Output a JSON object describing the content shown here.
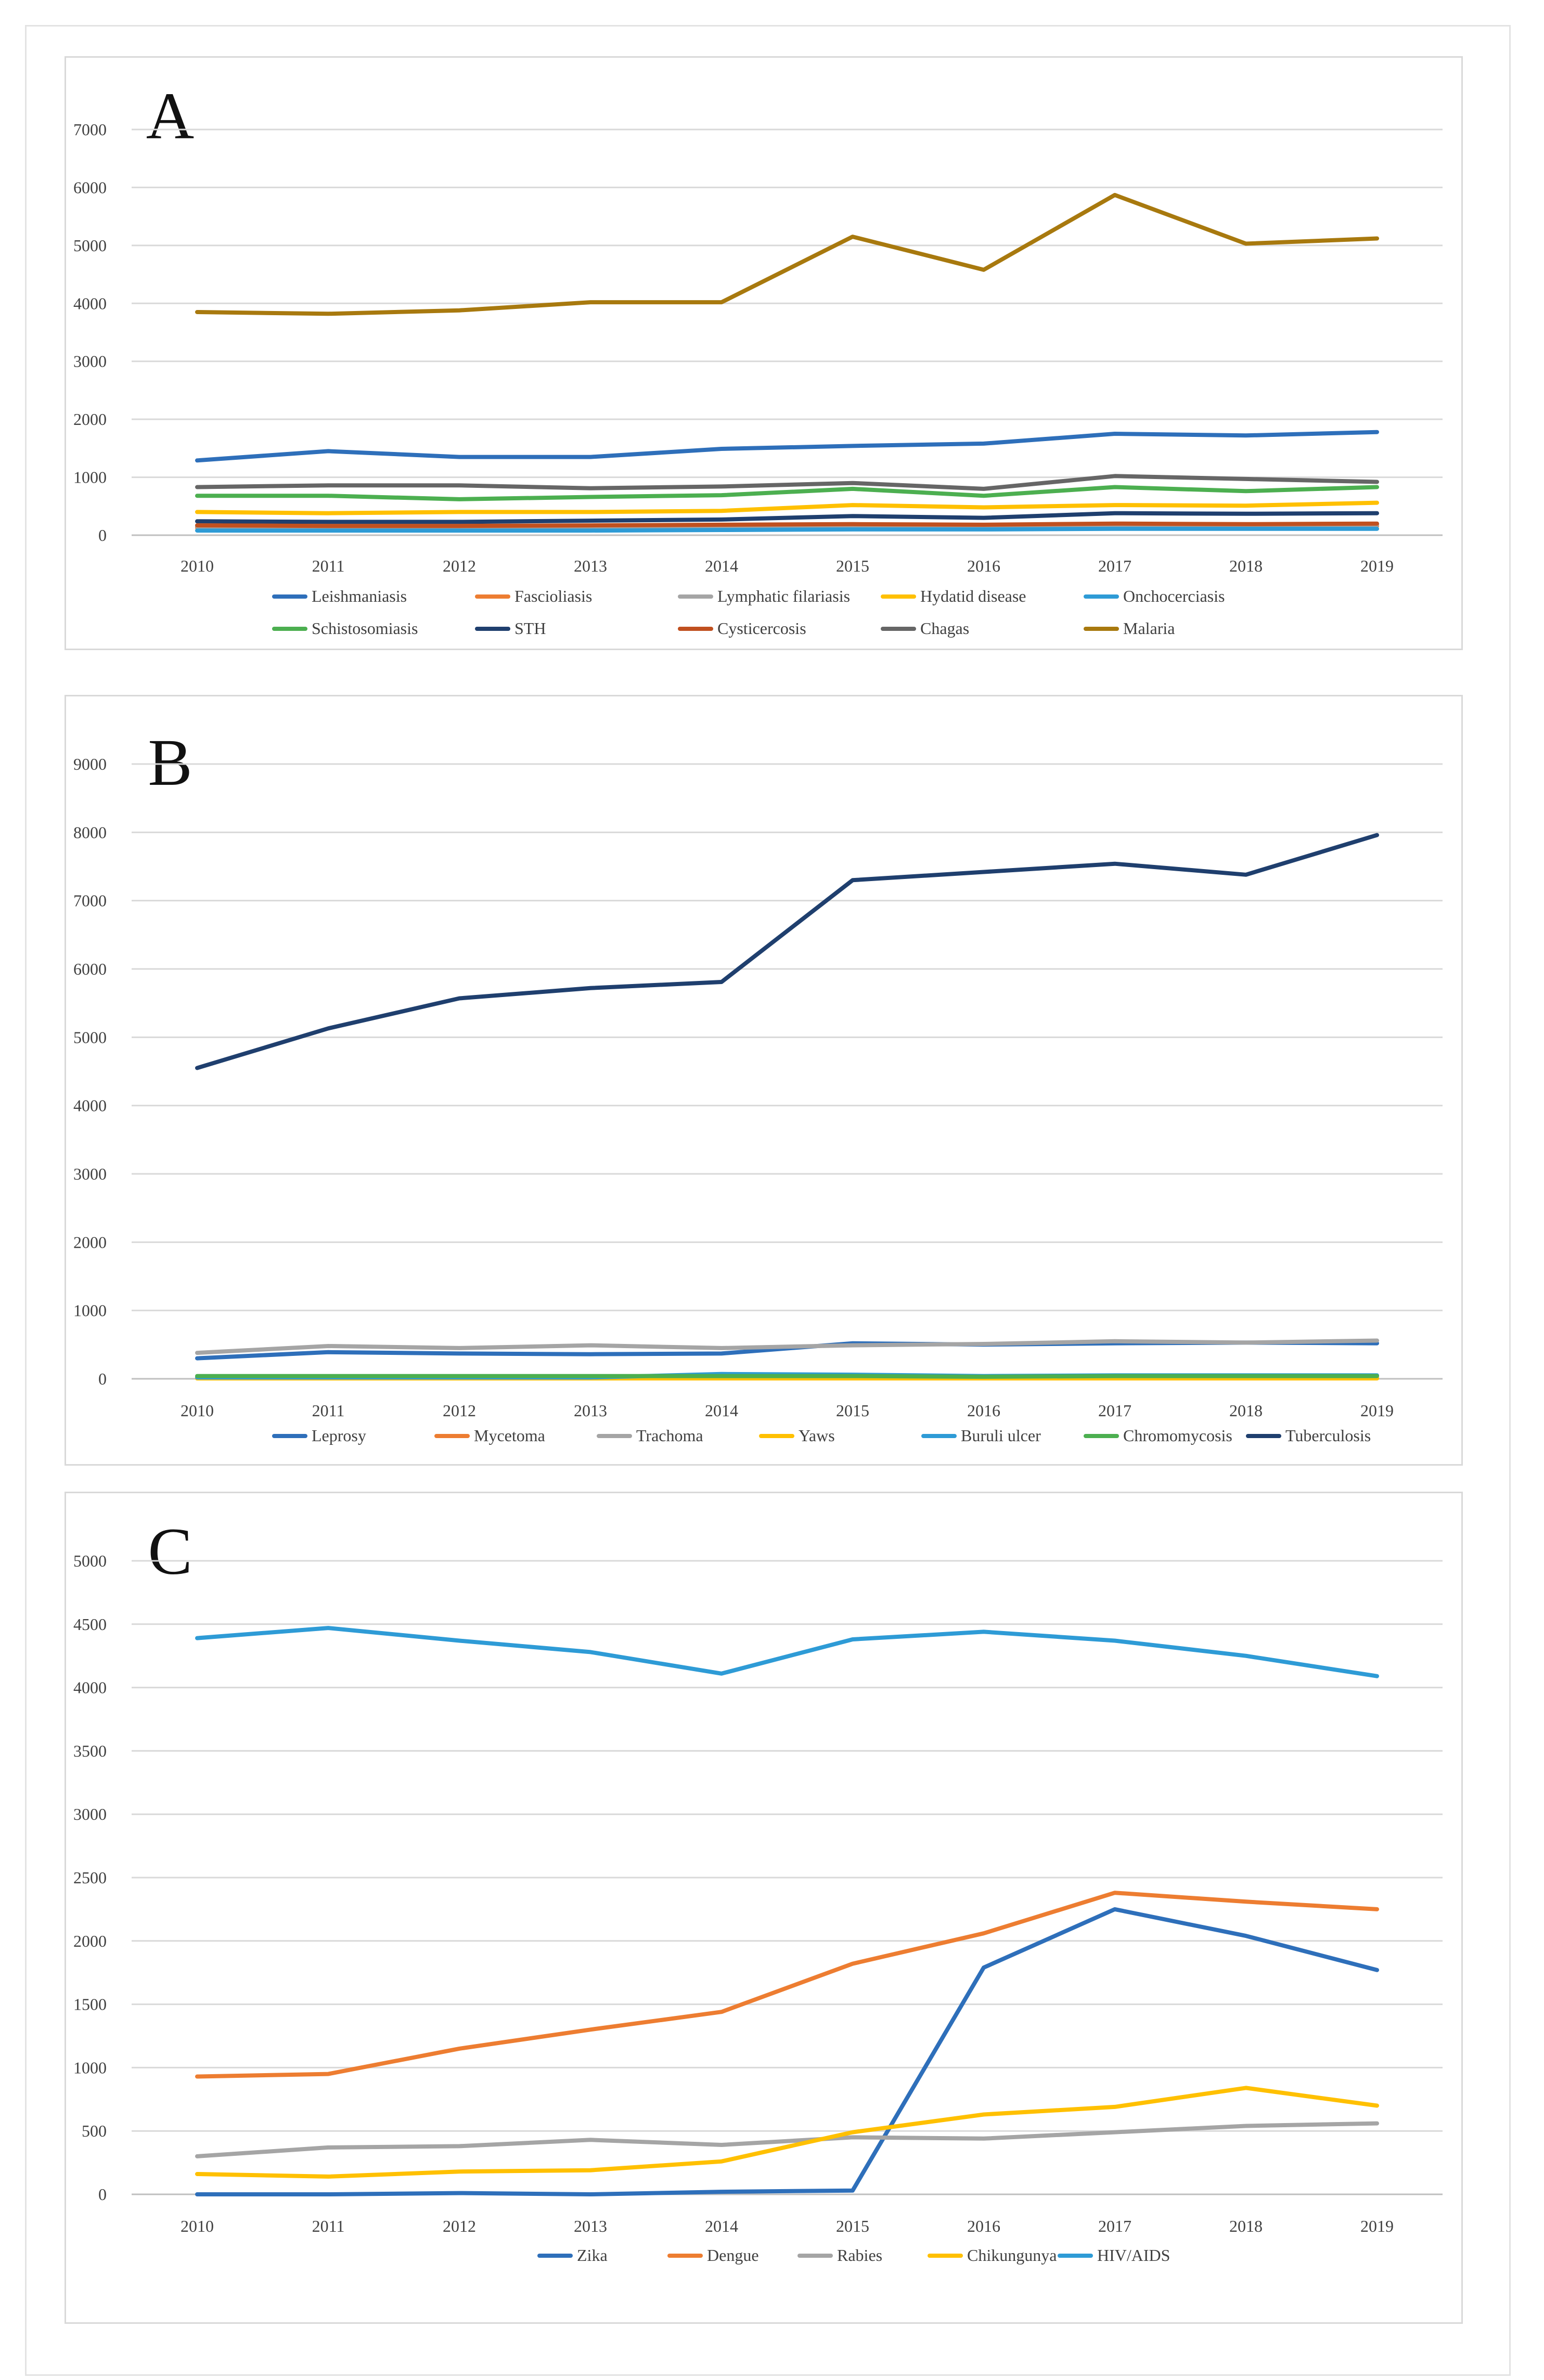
{
  "chart_data": [
    {
      "type": "line",
      "panel_label": "A",
      "categories": [
        "2010",
        "2011",
        "2012",
        "2013",
        "2014",
        "2015",
        "2016",
        "2017",
        "2018",
        "2019"
      ],
      "ylim": [
        0,
        7000
      ],
      "yticks": [
        0,
        1000,
        2000,
        3000,
        4000,
        5000,
        6000,
        7000
      ],
      "grid": true,
      "legend_position": "bottom",
      "series": [
        {
          "name": "Leishmaniasis",
          "color": "#2E6FBA",
          "values": [
            1290,
            1450,
            1350,
            1350,
            1490,
            1540,
            1580,
            1750,
            1720,
            1780
          ]
        },
        {
          "name": "Fascioliasis",
          "color": "#ED7D31",
          "values": [
            130,
            120,
            120,
            130,
            140,
            150,
            140,
            150,
            150,
            160
          ]
        },
        {
          "name": "Lymphatic filariasis",
          "color": "#A5A5A5",
          "values": [
            150,
            150,
            150,
            150,
            160,
            170,
            160,
            180,
            180,
            180
          ]
        },
        {
          "name": "Hydatid disease",
          "color": "#FFC000",
          "values": [
            400,
            380,
            400,
            400,
            420,
            520,
            480,
            520,
            510,
            560
          ]
        },
        {
          "name": "Onchocerciasis",
          "color": "#2E9BD6",
          "values": [
            80,
            80,
            80,
            80,
            90,
            100,
            100,
            110,
            110,
            110
          ]
        },
        {
          "name": "Schistosomiasis",
          "color": "#4CAF50",
          "values": [
            680,
            680,
            620,
            660,
            690,
            800,
            680,
            830,
            760,
            830
          ]
        },
        {
          "name": "STH",
          "color": "#1F3F6E",
          "values": [
            240,
            230,
            230,
            250,
            270,
            330,
            300,
            380,
            370,
            380
          ]
        },
        {
          "name": "Cysticercosis",
          "color": "#C0501F",
          "values": [
            170,
            160,
            160,
            170,
            180,
            190,
            180,
            200,
            190,
            200
          ]
        },
        {
          "name": "Chagas",
          "color": "#666666",
          "values": [
            830,
            860,
            860,
            810,
            840,
            900,
            800,
            1020,
            970,
            920
          ]
        },
        {
          "name": "Malaria",
          "color": "#A8790E",
          "values": [
            3850,
            3820,
            3880,
            4020,
            4020,
            5150,
            4580,
            5870,
            5030,
            5120
          ]
        }
      ]
    },
    {
      "type": "line",
      "panel_label": "B",
      "categories": [
        "2010",
        "2011",
        "2012",
        "2013",
        "2014",
        "2015",
        "2016",
        "2017",
        "2018",
        "2019"
      ],
      "ylim": [
        0,
        9000
      ],
      "yticks": [
        0,
        1000,
        2000,
        3000,
        4000,
        5000,
        6000,
        7000,
        8000,
        9000
      ],
      "grid": true,
      "legend_position": "bottom",
      "series": [
        {
          "name": "Leprosy",
          "color": "#2E6FBA",
          "values": [
            300,
            390,
            370,
            360,
            370,
            520,
            500,
            520,
            530,
            520
          ]
        },
        {
          "name": "Mycetoma",
          "color": "#ED7D31",
          "values": [
            10,
            10,
            10,
            10,
            10,
            10,
            10,
            10,
            10,
            10
          ]
        },
        {
          "name": "Trachoma",
          "color": "#A5A5A5",
          "values": [
            380,
            480,
            450,
            490,
            450,
            490,
            510,
            550,
            530,
            560
          ]
        },
        {
          "name": "Yaws",
          "color": "#FFC000",
          "values": [
            5,
            5,
            5,
            5,
            5,
            5,
            5,
            5,
            5,
            5
          ]
        },
        {
          "name": "Buruli ulcer",
          "color": "#2E9BD6",
          "values": [
            20,
            20,
            20,
            20,
            70,
            60,
            40,
            50,
            50,
            50
          ]
        },
        {
          "name": "Chromomycosis",
          "color": "#4CAF50",
          "values": [
            40,
            40,
            40,
            40,
            40,
            40,
            30,
            40,
            40,
            40
          ]
        },
        {
          "name": "Tuberculosis",
          "color": "#1F3F6E",
          "values": [
            4550,
            5130,
            5570,
            5720,
            5810,
            7300,
            7420,
            7540,
            7380,
            7960
          ]
        }
      ]
    },
    {
      "type": "line",
      "panel_label": "C",
      "categories": [
        "2010",
        "2011",
        "2012",
        "2013",
        "2014",
        "2015",
        "2016",
        "2017",
        "2018",
        "2019"
      ],
      "ylim": [
        0,
        5000
      ],
      "yticks": [
        0,
        500,
        1000,
        1500,
        2000,
        2500,
        3000,
        3500,
        4000,
        4500,
        5000
      ],
      "grid": true,
      "legend_position": "bottom",
      "series": [
        {
          "name": "Zika",
          "color": "#2E6FBA",
          "values": [
            0,
            0,
            10,
            0,
            20,
            30,
            1790,
            2250,
            2040,
            1770
          ]
        },
        {
          "name": "Dengue",
          "color": "#ED7D31",
          "values": [
            930,
            950,
            1150,
            1300,
            1440,
            1820,
            2060,
            2380,
            2310,
            2250
          ]
        },
        {
          "name": "Rabies",
          "color": "#A5A5A5",
          "values": [
            300,
            370,
            380,
            430,
            390,
            450,
            440,
            490,
            540,
            560
          ]
        },
        {
          "name": "Chikungunya",
          "color": "#FFC000",
          "values": [
            160,
            140,
            180,
            190,
            260,
            490,
            630,
            690,
            840,
            700
          ]
        },
        {
          "name": "HIV/AIDS",
          "color": "#2E9BD6",
          "values": [
            4390,
            4470,
            4370,
            4280,
            4110,
            4380,
            4440,
            4370,
            4250,
            4090
          ]
        }
      ]
    }
  ]
}
